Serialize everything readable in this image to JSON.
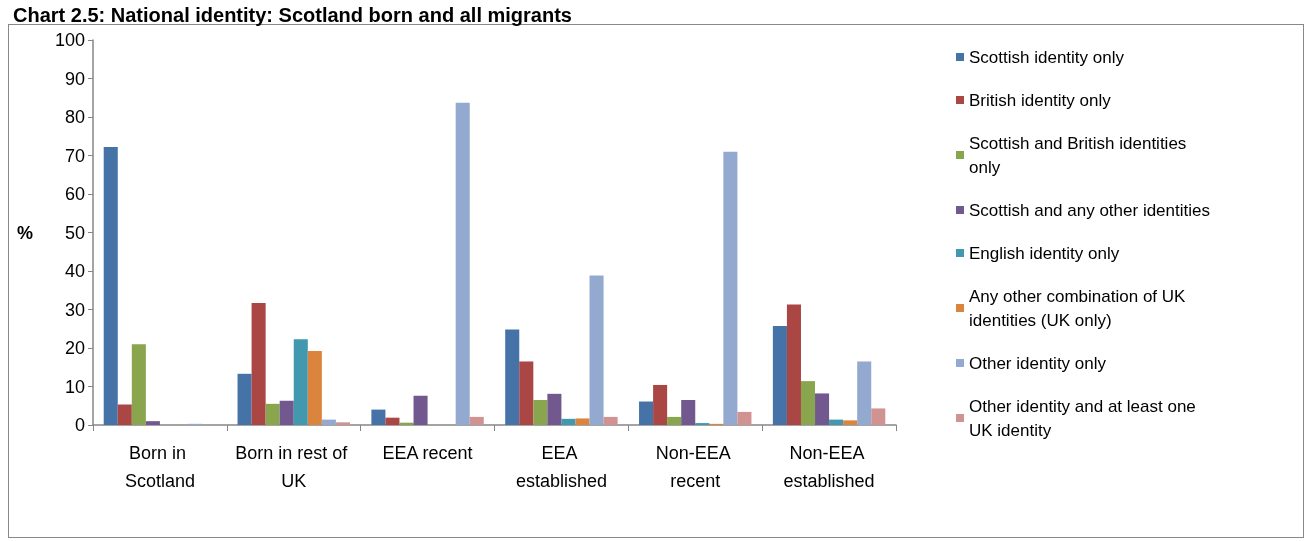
{
  "chart_data": {
    "type": "bar",
    "title": "Chart 2.5: National identity: Scotland born and all migrants",
    "ylabel": "%",
    "categories": [
      "Born in Scotland",
      "Born in rest of UK",
      "EEA recent",
      "EEA established",
      "Non-EEA recent",
      "Non-EEA established"
    ],
    "series": [
      {
        "name": "Scottish identity only",
        "color": "#4572a7",
        "values": [
          72.2,
          13.3,
          4,
          24.8,
          6.1,
          25.7
        ]
      },
      {
        "name": "British identity only",
        "color": "#aa4643",
        "values": [
          5.3,
          31.7,
          1.9,
          16.5,
          10.4,
          31.3
        ]
      },
      {
        "name": "Scottish and British identities only",
        "color": "#89a54e",
        "values": [
          21,
          5.5,
          0.6,
          6.5,
          2.1,
          11.4
        ]
      },
      {
        "name": "Scottish and any other identities",
        "color": "#71588f",
        "values": [
          1,
          6.3,
          7.6,
          8.1,
          6.5,
          8.2
        ]
      },
      {
        "name": "English identity only",
        "color": "#4198af",
        "values": [
          null,
          22.3,
          null,
          1.6,
          0.5,
          1.4
        ]
      },
      {
        "name": "Any other combination of UK identities (UK only)",
        "color": "#db843d",
        "values": [
          0,
          19.2,
          null,
          1.7,
          0.3,
          1.2
        ]
      },
      {
        "name": "Other identity only",
        "color": "#93a9cf",
        "values": [
          0.3,
          1.4,
          83.7,
          38.8,
          71,
          16.5
        ]
      },
      {
        "name": "Other identity and at least one UK identity",
        "color": "#d19392",
        "values": [
          null,
          0.7,
          2.1,
          2.1,
          3.4,
          4.3
        ]
      }
    ],
    "ylim": [
      0,
      100
    ],
    "yticks": [
      0,
      10,
      20,
      30,
      40,
      50,
      60,
      70,
      80,
      90,
      100
    ],
    "grid": false,
    "legend": "right"
  }
}
